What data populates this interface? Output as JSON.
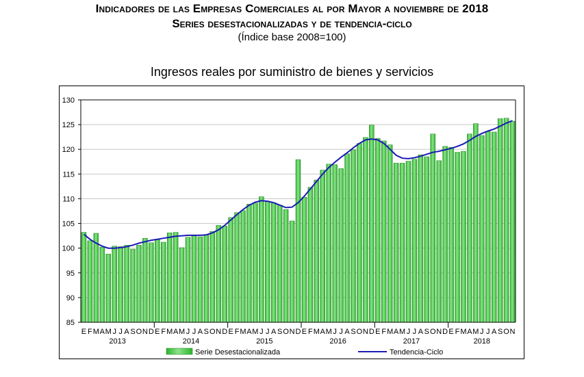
{
  "header": {
    "title": "Indicadores de las Empresas Comerciales al por Mayor a noviembre de 2018",
    "subtitle": "Series desestacionalizadas y de tendencia-ciclo",
    "base_note": "(Índice base 2008=100)"
  },
  "colors": {
    "bar_fill": "#2db42d",
    "bar_highlight": "#8be38b",
    "trend_line": "#1a1ab4"
  },
  "chart_data": {
    "type": "bar",
    "title": "Ingresos reales por suministro de bienes y servicios",
    "xlabel": "",
    "ylabel": "",
    "ylim": [
      85,
      130
    ],
    "yticks": [
      85,
      90,
      95,
      100,
      105,
      110,
      115,
      120,
      125,
      130
    ],
    "grid": true,
    "legend_position": "bottom",
    "categories": [
      "E",
      "F",
      "M",
      "A",
      "M",
      "J",
      "J",
      "A",
      "S",
      "O",
      "N",
      "D",
      "E",
      "F",
      "M",
      "A",
      "M",
      "J",
      "J",
      "A",
      "S",
      "O",
      "N",
      "D",
      "E",
      "F",
      "M",
      "A",
      "M",
      "J",
      "J",
      "A",
      "S",
      "O",
      "N",
      "D",
      "E",
      "F",
      "M",
      "A",
      "M",
      "J",
      "J",
      "A",
      "S",
      "O",
      "N",
      "D",
      "E",
      "F",
      "M",
      "A",
      "M",
      "J",
      "J",
      "A",
      "S",
      "O",
      "N",
      "D",
      "E",
      "F",
      "M",
      "A",
      "M",
      "J",
      "J",
      "A",
      "S",
      "O",
      "N"
    ],
    "years": [
      "2013",
      "2014",
      "2015",
      "2016",
      "2017",
      "2018"
    ],
    "series": [
      {
        "name": "Serie Desestacionalizada",
        "kind": "bar",
        "values": [
          103.2,
          101.5,
          103.0,
          100.2,
          98.8,
          100.4,
          100.3,
          100.6,
          99.8,
          100.6,
          102.0,
          101.1,
          101.7,
          101.2,
          103.1,
          103.2,
          100.1,
          102.2,
          102.5,
          102.3,
          102.7,
          103.4,
          104.6,
          104.5,
          106.2,
          107.2,
          107.6,
          108.9,
          109.1,
          110.4,
          109.5,
          109.2,
          108.7,
          107.8,
          105.5,
          117.9,
          110.3,
          112.3,
          113.8,
          115.8,
          117.0,
          116.9,
          116.1,
          119.1,
          119.9,
          121.2,
          122.4,
          124.9,
          122.2,
          121.7,
          120.9,
          117.2,
          117.2,
          117.6,
          118.0,
          118.9,
          118.5,
          123.1,
          117.7,
          120.6,
          120.4,
          119.4,
          119.6,
          123.1,
          125.2,
          122.8,
          123.6,
          123.5,
          126.2,
          126.3,
          125.7
        ]
      },
      {
        "name": "Tendencia-Ciclo",
        "kind": "line",
        "values": [
          102.8,
          101.8,
          101.0,
          100.4,
          100.0,
          100.0,
          100.1,
          100.3,
          100.6,
          101.0,
          101.3,
          101.6,
          101.8,
          102.0,
          102.2,
          102.4,
          102.5,
          102.6,
          102.6,
          102.6,
          102.7,
          103.1,
          103.7,
          104.6,
          105.7,
          106.8,
          107.8,
          108.7,
          109.3,
          109.6,
          109.5,
          109.2,
          108.7,
          108.2,
          108.3,
          109.2,
          110.5,
          112.0,
          113.5,
          115.0,
          116.3,
          117.4,
          118.4,
          119.3,
          120.3,
          121.2,
          121.9,
          122.1,
          121.9,
          121.2,
          120.0,
          118.8,
          118.2,
          118.1,
          118.3,
          118.6,
          119.0,
          119.4,
          119.6,
          119.9,
          120.2,
          120.6,
          121.1,
          121.8,
          122.6,
          123.2,
          123.7,
          124.1,
          124.7,
          125.3,
          125.8
        ]
      }
    ]
  }
}
